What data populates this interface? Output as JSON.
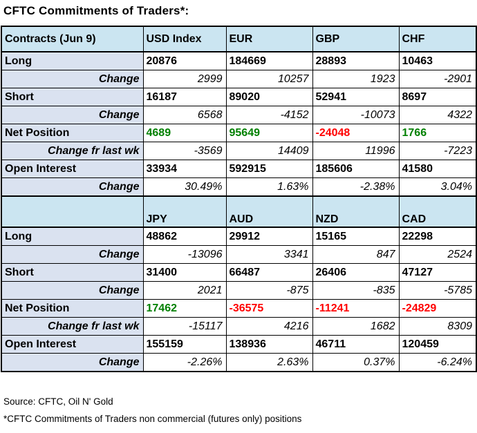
{
  "title": "CFTC Commitments of Traders*:",
  "colors": {
    "positive": "#008000",
    "negative": "#ff0000",
    "header_bg": "#cbe5f1",
    "label_bg": "#dae2f0"
  },
  "footer": {
    "source": "Source: CFTC, Oil N' Gold",
    "note": "*CFTC Commitments of Traders non commercial (futures only) positions"
  },
  "table": {
    "sections": [
      {
        "header": "Contracts (Jun 9)",
        "cols": [
          "USD Index",
          "EUR",
          "GBP",
          "CHF"
        ],
        "rows": [
          {
            "label": "Long",
            "values": [
              "20876",
              "184669",
              "28893",
              "10463"
            ]
          },
          {
            "label": "Change",
            "values": [
              "2999",
              "10257",
              "1923",
              "-2901"
            ]
          },
          {
            "label": "Short",
            "values": [
              "16187",
              "89020",
              "52941",
              "8697"
            ]
          },
          {
            "label": "Change",
            "values": [
              "6568",
              "-4152",
              "-10073",
              "4322"
            ]
          },
          {
            "label": "Net Position",
            "values": [
              "4689",
              "95649",
              "-24048",
              "1766"
            ]
          },
          {
            "label": "Change fr last wk",
            "values": [
              "-3569",
              "14409",
              "11996",
              "-7223"
            ]
          },
          {
            "label": "Open Interest",
            "values": [
              "33934",
              "592915",
              "185606",
              "41580"
            ]
          },
          {
            "label": "Change",
            "values": [
              "30.49%",
              "1.63%",
              "-2.38%",
              "3.04%"
            ]
          }
        ]
      },
      {
        "header": "",
        "cols": [
          "JPY",
          "AUD",
          "NZD",
          "CAD"
        ],
        "rows": [
          {
            "label": "Long",
            "values": [
              "48862",
              "29912",
              "15165",
              "22298"
            ]
          },
          {
            "label": "Change",
            "values": [
              "-13096",
              "3341",
              "847",
              "2524"
            ]
          },
          {
            "label": "Short",
            "values": [
              "31400",
              "66487",
              "26406",
              "47127"
            ]
          },
          {
            "label": "Change",
            "values": [
              "2021",
              "-875",
              "-835",
              "-5785"
            ]
          },
          {
            "label": "Net Position",
            "values": [
              "17462",
              "-36575",
              "-11241",
              "-24829"
            ]
          },
          {
            "label": "Change fr last wk",
            "values": [
              "-15117",
              "4216",
              "1682",
              "8309"
            ]
          },
          {
            "label": "Open Interest",
            "values": [
              "155159",
              "138936",
              "46711",
              "120459"
            ]
          },
          {
            "label": "Change",
            "values": [
              "-2.26%",
              "2.63%",
              "0.37%",
              "-6.24%"
            ]
          }
        ]
      }
    ]
  },
  "chart_data": {
    "type": "table",
    "title": "CFTC Commitments of Traders*: (Jun 9)",
    "row_headers": [
      "Long",
      "Change",
      "Short",
      "Change",
      "Net Position",
      "Change fr last wk",
      "Open Interest",
      "Change"
    ],
    "columns": [
      "USD Index",
      "EUR",
      "GBP",
      "CHF",
      "JPY",
      "AUD",
      "NZD",
      "CAD"
    ],
    "long": [
      20876,
      184669,
      28893,
      10463,
      48862,
      29912,
      15165,
      22298
    ],
    "long_change": [
      2999,
      10257,
      1923,
      -2901,
      -13096,
      3341,
      847,
      2524
    ],
    "short": [
      16187,
      89020,
      52941,
      8697,
      31400,
      66487,
      26406,
      47127
    ],
    "short_change": [
      6568,
      -4152,
      -10073,
      4322,
      2021,
      -875,
      -835,
      -5785
    ],
    "net_position": [
      4689,
      95649,
      -24048,
      1766,
      17462,
      -36575,
      -11241,
      -24829
    ],
    "net_change_fr_last_wk": [
      -3569,
      14409,
      11996,
      -7223,
      -15117,
      4216,
      1682,
      8309
    ],
    "open_interest": [
      33934,
      592915,
      185606,
      41580,
      155159,
      138936,
      46711,
      120459
    ],
    "open_interest_change_pct": [
      30.49,
      1.63,
      -2.38,
      3.04,
      -2.26,
      2.63,
      0.37,
      -6.24
    ],
    "source": "Source: CFTC, Oil N' Gold",
    "note": "*CFTC Commitments of Traders non commercial (futures only) positions"
  }
}
